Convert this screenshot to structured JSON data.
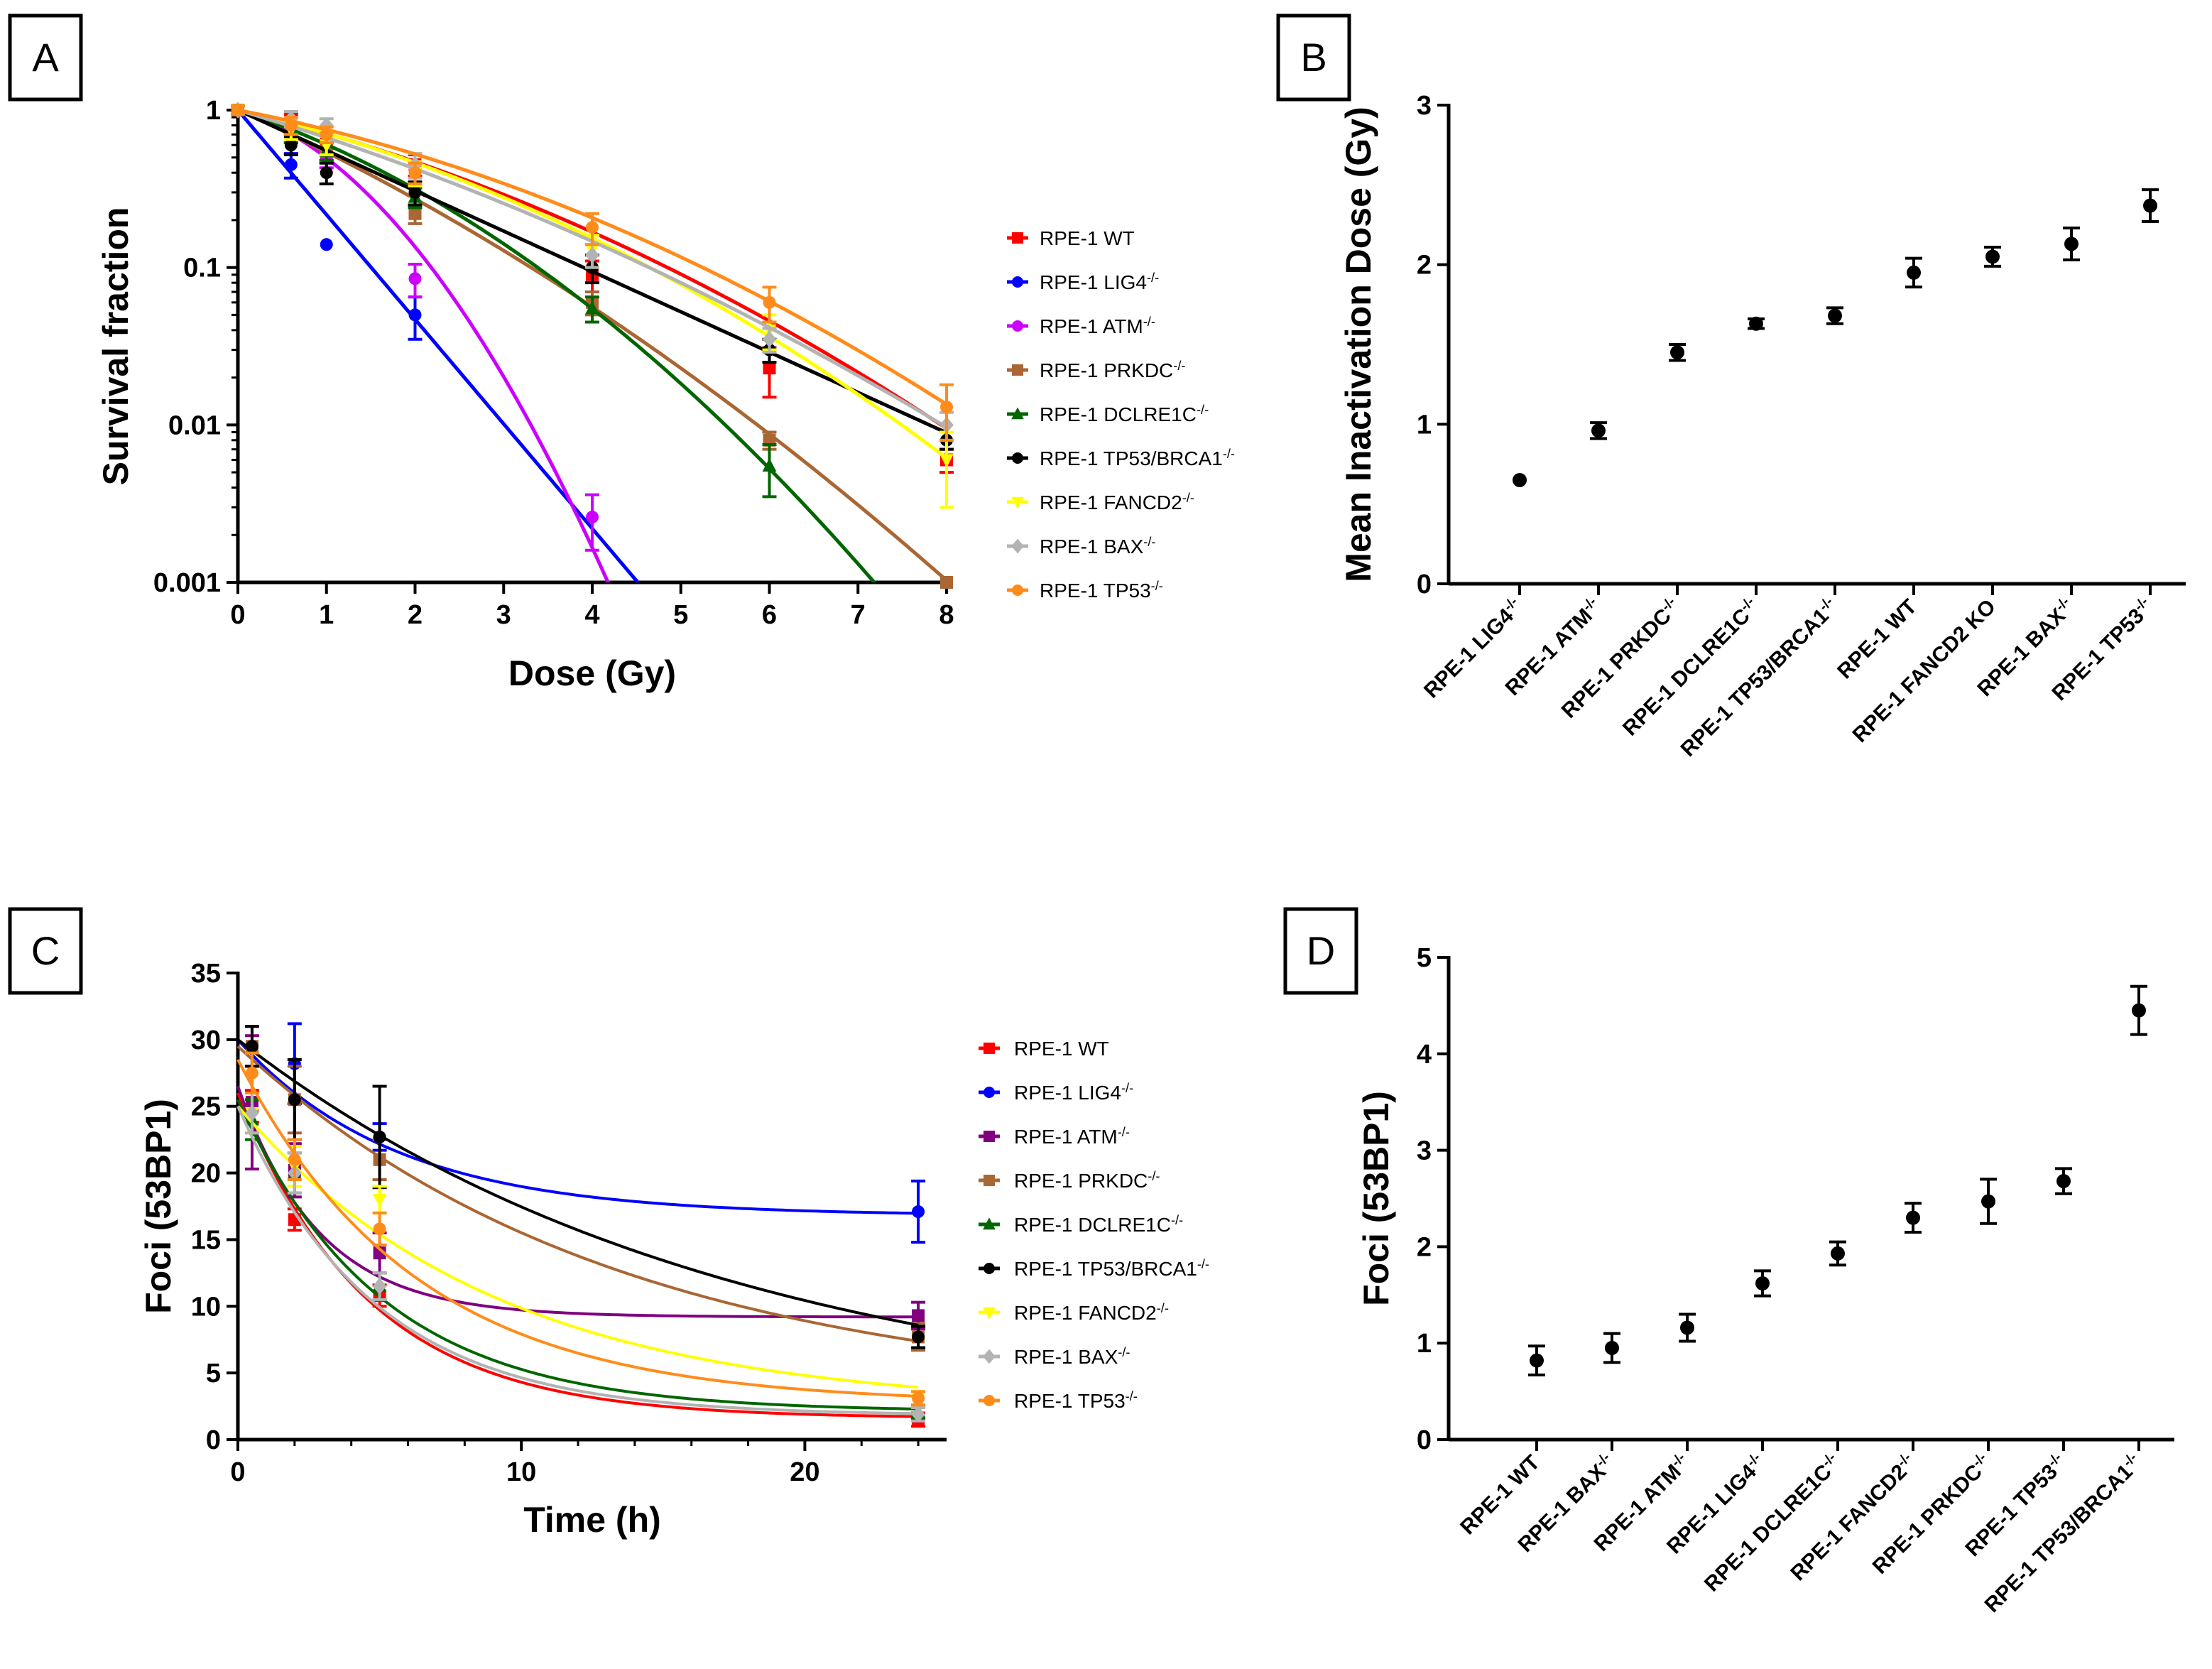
{
  "chart_data": [
    {
      "panel": "A",
      "type": "line",
      "title": "",
      "xlabel": "Dose (Gy)",
      "ylabel": "Survival fraction",
      "yscale": "log",
      "xlim": [
        0,
        8
      ],
      "ylim": [
        0.001,
        1
      ],
      "xticks": [
        0,
        1,
        2,
        3,
        4,
        5,
        6,
        7,
        8
      ],
      "yticks": [
        0.001,
        0.01,
        0.1,
        1
      ],
      "ytick_labels": [
        "0.001",
        "0.01",
        "0.1",
        "1"
      ],
      "legend_suffix": "-/-",
      "series": [
        {
          "name": "RPE-1 WT",
          "sup": "",
          "color": "#ff0000",
          "marker": "square",
          "a": 0.31,
          "b": 0.034,
          "x": [
            0,
            0.6,
            1,
            2,
            4,
            6,
            8
          ],
          "y": [
            1,
            0.82,
            0.62,
            0.45,
            0.09,
            0.023,
            0.006
          ],
          "err": [
            0.06,
            0.12,
            0.1,
            0.07,
            0.02,
            0.008,
            0.001
          ]
        },
        {
          "name": "RPE-1 LIG4",
          "sup": "-/-",
          "color": "#0000ff",
          "marker": "circle",
          "a": 1.53,
          "b": 0.0,
          "x": [
            0,
            0.6,
            1,
            2
          ],
          "y": [
            1,
            0.45,
            0.14,
            0.05
          ],
          "err": [
            0.06,
            0.08,
            0.0,
            0.015
          ]
        },
        {
          "name": "RPE-1 ATM",
          "sup": "-/-",
          "color": "#cc00ff",
          "marker": "circle",
          "a": 0.4,
          "b": 0.3,
          "x": [
            0,
            0.6,
            1,
            2,
            4
          ],
          "y": [
            1,
            0.7,
            0.5,
            0.085,
            0.0026
          ],
          "err": [
            0.06,
            0.08,
            0.07,
            0.02,
            0.001
          ]
        },
        {
          "name": "RPE-1 PRKDC",
          "sup": "-/-",
          "color": "#aa6633",
          "marker": "square",
          "a": 0.58,
          "b": 0.035,
          "x": [
            0,
            0.6,
            1,
            2,
            4,
            6,
            8
          ],
          "y": [
            1,
            0.7,
            0.55,
            0.22,
            0.06,
            0.008,
            0.001
          ],
          "err": [
            0.06,
            0.08,
            0.07,
            0.03,
            0.01,
            0.001,
            0.0
          ]
        },
        {
          "name": "RPE-1 DCLRE1C",
          "sup": "-/-",
          "color": "#006600",
          "marker": "triangle",
          "a": 0.43,
          "b": 0.074,
          "x": [
            0,
            0.6,
            1,
            2,
            4,
            6
          ],
          "y": [
            1,
            0.7,
            0.55,
            0.28,
            0.055,
            0.0055
          ],
          "err": [
            0.06,
            0.08,
            0.07,
            0.04,
            0.01,
            0.002
          ]
        },
        {
          "name": "RPE-1 TP53/BRCA1",
          "sup": "-/-",
          "color": "#000000",
          "marker": "circle",
          "a": 0.59,
          "b": 0.0,
          "x": [
            0,
            0.6,
            1,
            2,
            4,
            6,
            8
          ],
          "y": [
            1,
            0.6,
            0.4,
            0.3,
            0.1,
            0.03,
            0.008
          ],
          "err": [
            0.06,
            0.08,
            0.06,
            0.05,
            0.02,
            0.005,
            0.001
          ]
        },
        {
          "name": "RPE-1 FANCD2",
          "sup": "-/-",
          "color": "#ffff00",
          "marker": "triangle-down",
          "a": 0.3,
          "b": 0.042,
          "x": [
            0,
            0.6,
            1,
            2,
            4,
            6,
            8
          ],
          "y": [
            1,
            0.75,
            0.6,
            0.4,
            0.13,
            0.04,
            0.006
          ],
          "err": [
            0.06,
            0.1,
            0.08,
            0.07,
            0.03,
            0.01,
            0.003
          ]
        },
        {
          "name": "RPE-1 BAX",
          "sup": "-/-",
          "color": "#b3b3b3",
          "marker": "diamond",
          "a": 0.38,
          "b": 0.025,
          "x": [
            0,
            0.6,
            1,
            2,
            4,
            6,
            8
          ],
          "y": [
            1,
            0.88,
            0.8,
            0.45,
            0.12,
            0.035,
            0.01
          ],
          "err": [
            0.06,
            0.1,
            0.08,
            0.08,
            0.02,
            0.006,
            0.002
          ]
        },
        {
          "name": "RPE-1 TP53",
          "sup": "-/-",
          "color": "#ff8c1a",
          "marker": "circle",
          "a": 0.25,
          "b": 0.036,
          "x": [
            0,
            0.6,
            1,
            2,
            4,
            6,
            8
          ],
          "y": [
            1,
            0.8,
            0.7,
            0.4,
            0.18,
            0.06,
            0.013
          ],
          "err": [
            0.06,
            0.1,
            0.08,
            0.06,
            0.04,
            0.015,
            0.005
          ]
        }
      ]
    },
    {
      "panel": "B",
      "type": "scatter",
      "title": "",
      "xlabel": "",
      "ylabel": "Mean Inactivation Dose (Gy)",
      "ylim": [
        0,
        3
      ],
      "yticks": [
        0,
        1,
        2,
        3
      ],
      "categories": [
        "RPE-1 LIG4",
        "RPE-1 ATM",
        "RPE-1 PRKDC",
        "RPE-1 DCLRE1C",
        "RPE-1 TP53/BRCA1",
        "RPE-1 WT",
        "RPE-1 FANCD2 KO",
        "RPE-1 BAX",
        "RPE-1 TP53"
      ],
      "category_sups": [
        "-/-",
        "-/-",
        "-/-",
        "-/-",
        "-/-",
        "",
        "",
        "-/-",
        "-/-"
      ],
      "values": [
        0.65,
        0.96,
        1.45,
        1.63,
        1.68,
        1.95,
        2.05,
        2.13,
        2.37
      ],
      "errors": [
        0.0,
        0.05,
        0.05,
        0.03,
        0.05,
        0.09,
        0.06,
        0.1,
        0.1
      ]
    },
    {
      "panel": "C",
      "type": "line",
      "title": "",
      "xlabel": "Time (h)",
      "ylabel": "Foci (53BP1)",
      "xlim": [
        0,
        25
      ],
      "ylim": [
        0,
        35
      ],
      "xticks": [
        0,
        10,
        20
      ],
      "yticks": [
        0,
        5,
        10,
        15,
        20,
        25,
        30,
        35
      ],
      "series": [
        {
          "name": "RPE-1 WT",
          "sup": "",
          "color": "#ff0000",
          "marker": "square",
          "y0": 26,
          "plateau": 1.6,
          "k": 0.22,
          "x": [
            0.5,
            2,
            5,
            24
          ],
          "y": [
            25,
            16.5,
            10.8,
            1.5
          ],
          "err": [
            1.2,
            0.8,
            0.8,
            0.5
          ]
        },
        {
          "name": "RPE-1 LIG4",
          "sup": "-/-",
          "color": "#0000ff",
          "marker": "circle",
          "y0": 30,
          "plateau": 16.8,
          "k": 0.18,
          "x": [
            0.5,
            2,
            5,
            24
          ],
          "y": [
            29.5,
            28.2,
            22.7,
            17.1
          ],
          "err": [
            1.5,
            3.0,
            1.0,
            2.3
          ]
        },
        {
          "name": "RPE-1 ATM",
          "sup": "-/-",
          "color": "#800080",
          "marker": "square",
          "y0": 26.5,
          "plateau": 9.2,
          "k": 0.35,
          "x": [
            0.5,
            2,
            5,
            24
          ],
          "y": [
            25.3,
            20.2,
            14,
            9.3
          ],
          "err": [
            5.0,
            2.0,
            1.5,
            1.0
          ]
        },
        {
          "name": "RPE-1 PRKDC",
          "sup": "-/-",
          "color": "#aa6633",
          "marker": "square",
          "y0": 29.5,
          "plateau": 3,
          "k": 0.075,
          "x": [
            0.5,
            2,
            5,
            24
          ],
          "y": [
            29.5,
            25.5,
            21,
            7.7
          ],
          "err": [
            1.5,
            2.5,
            1.5,
            1.0
          ]
        },
        {
          "name": "RPE-1 DCLRE1C",
          "sup": "-/-",
          "color": "#006600",
          "marker": "triangle",
          "y0": 25.5,
          "plateau": 2.1,
          "k": 0.2,
          "x": [
            0.5,
            2,
            5,
            24
          ],
          "y": [
            24,
            20,
            11.5,
            2.1
          ],
          "err": [
            1.5,
            1.5,
            1.0,
            0.5
          ]
        },
        {
          "name": "RPE-1 TP53/BRCA1",
          "sup": "-/-",
          "color": "#000000",
          "marker": "circle",
          "y0": 30,
          "plateau": 1.5,
          "k": 0.058,
          "x": [
            0.5,
            2,
            5,
            24
          ],
          "y": [
            29.5,
            25.5,
            22.7,
            7.7
          ],
          "err": [
            1.5,
            3.0,
            3.8,
            0.8
          ]
        },
        {
          "name": "RPE-1 FANCD2",
          "sup": "-/-",
          "color": "#ffff00",
          "marker": "triangle-down",
          "y0": 25,
          "plateau": 2.3,
          "k": 0.11,
          "x": [
            0.5,
            2,
            5,
            24
          ],
          "y": [
            24.5,
            20.5,
            18,
            3.1
          ],
          "err": [
            1.5,
            1.5,
            1.0,
            0.5
          ]
        },
        {
          "name": "RPE-1 BAX",
          "sup": "-/-",
          "color": "#b3b3b3",
          "marker": "diamond",
          "y0": 25,
          "plateau": 1.8,
          "k": 0.21,
          "x": [
            0.5,
            2,
            5,
            24
          ],
          "y": [
            24.5,
            20,
            11.5,
            1.9
          ],
          "err": [
            1.5,
            1.5,
            1.0,
            0.5
          ]
        },
        {
          "name": "RPE-1 TP53",
          "sup": "-/-",
          "color": "#ff8c1a",
          "marker": "circle",
          "y0": 28.5,
          "plateau": 2.7,
          "k": 0.16,
          "x": [
            0.5,
            2,
            5,
            24
          ],
          "y": [
            27.5,
            21,
            15.8,
            3.1
          ],
          "err": [
            1.5,
            1.5,
            1.2,
            0.5
          ]
        }
      ]
    },
    {
      "panel": "D",
      "type": "scatter",
      "title": "",
      "xlabel": "",
      "ylabel": "Foci (53BP1)",
      "ylim": [
        0,
        5
      ],
      "yticks": [
        0,
        1,
        2,
        3,
        4,
        5
      ],
      "categories": [
        "RPE-1 WT",
        "RPE-1 BAX",
        "RPE-1 ATM",
        "RPE-1 LIG4",
        "RPE-1 DCLRE1C",
        "RPE-1 FANCD2",
        "RPE-1 PRKDC",
        "RPE-1 TP53",
        "RPE-1 TP53/BRCA1"
      ],
      "category_sups": [
        "",
        "-/-",
        "-/-",
        "-/-",
        "-/-",
        "-/-",
        "-/-",
        "-/-",
        "-/-"
      ],
      "values": [
        0.82,
        0.95,
        1.16,
        1.62,
        1.93,
        2.3,
        2.47,
        2.68,
        4.45
      ],
      "errors": [
        0.15,
        0.15,
        0.14,
        0.13,
        0.12,
        0.15,
        0.23,
        0.13,
        0.25
      ]
    }
  ],
  "panels": [
    "A",
    "B",
    "C",
    "D"
  ]
}
